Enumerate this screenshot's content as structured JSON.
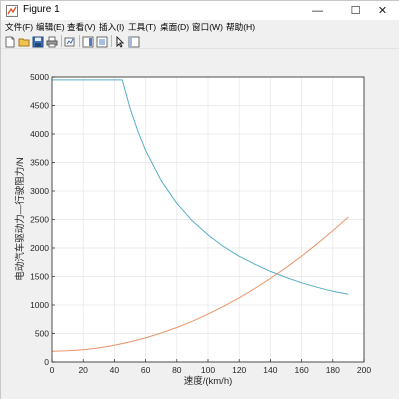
{
  "window": {
    "title": "Figure 1",
    "minimize_glyph": "—",
    "maximize_glyph": "☐",
    "close_glyph": "✕"
  },
  "menu": {
    "items": [
      {
        "label": "文件(F)"
      },
      {
        "label": "编辑(E)"
      },
      {
        "label": "查看(V)"
      },
      {
        "label": "插入(I)"
      },
      {
        "label": "工具(T)"
      },
      {
        "label": "桌面(D)"
      },
      {
        "label": "窗口(W)"
      },
      {
        "label": "帮助(H)"
      }
    ]
  },
  "toolbar": {
    "buttons": [
      {
        "icon": "new-figure-icon"
      },
      {
        "icon": "open-file-icon"
      },
      {
        "icon": "save-icon"
      },
      {
        "icon": "print-icon"
      },
      {
        "icon": "link-plot-icon"
      },
      {
        "icon": "colorbar-icon"
      },
      {
        "icon": "legend-icon"
      },
      {
        "icon": "pointer-icon"
      },
      {
        "icon": "plot-tools-icon"
      }
    ]
  },
  "colors": {
    "series_drive": "#56aec6",
    "series_resist": "#e8946a",
    "grid": "#e6e6e6",
    "axes": "#262626",
    "axes_bg": "#ffffff"
  },
  "chart_data": {
    "type": "line",
    "title": "",
    "xlabel": "速度/(km/h)",
    "ylabel": "电动汽车驱动力—行驶阻力/N",
    "xlim": [
      0,
      200
    ],
    "ylim": [
      0,
      5000
    ],
    "xticks": [
      0,
      20,
      40,
      60,
      80,
      100,
      120,
      140,
      160,
      180,
      200
    ],
    "yticks": [
      0,
      500,
      1000,
      1500,
      2000,
      2500,
      3000,
      3500,
      4000,
      4500,
      5000
    ],
    "grid": true,
    "legend": "none",
    "series": [
      {
        "x": [
          0,
          10,
          20,
          30,
          40,
          45,
          50,
          55,
          60,
          70,
          80,
          90,
          100,
          110,
          120,
          130,
          140,
          150,
          160,
          170,
          180,
          190
        ],
        "y": [
          4950,
          4950,
          4950,
          4950,
          4950,
          4950,
          4455,
          4050,
          3710,
          3180,
          2785,
          2475,
          2230,
          2025,
          1855,
          1715,
          1590,
          1485,
          1390,
          1310,
          1240,
          1190
        ]
      },
      {
        "x": [
          0,
          10,
          20,
          30,
          40,
          50,
          60,
          70,
          80,
          90,
          100,
          110,
          120,
          130,
          140,
          150,
          160,
          170,
          180,
          190
        ],
        "y": [
          190,
          197,
          216,
          248,
          294,
          352,
          423,
          508,
          606,
          716,
          840,
          977,
          1127,
          1290,
          1466,
          1655,
          1858,
          2073,
          2302,
          2544
        ]
      }
    ]
  }
}
